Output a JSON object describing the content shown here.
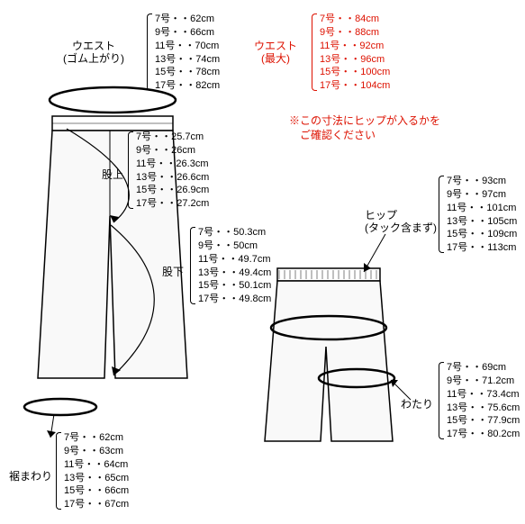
{
  "labels": {
    "waist_up": "ウエスト\n(ゴム上がり)",
    "waist_max": "ウエスト\n(最大)",
    "rise": "股上",
    "inseam": "股下",
    "hem": "裾まわり",
    "hip": "ヒップ\n(タック含まず)",
    "wadari": "わたり",
    "note": "※この寸法にヒップが入るかを\n　ご確認ください"
  },
  "tables": {
    "waist_up": [
      "7号・・62cm",
      "9号・・66cm",
      "11号・・70cm",
      "13号・・74cm",
      "15号・・78cm",
      "17号・・82cm"
    ],
    "waist_max": [
      "7号・・84cm",
      "9号・・88cm",
      "11号・・92cm",
      "13号・・96cm",
      "15号・・100cm",
      "17号・・104cm"
    ],
    "rise": [
      "7号・・25.7cm",
      "9号・・26cm",
      "11号・・26.3cm",
      "13号・・26.6cm",
      "15号・・26.9cm",
      "17号・・27.2cm"
    ],
    "inseam": [
      "7号・・50.3cm",
      "9号・・50cm",
      "11号・・49.7cm",
      "13号・・49.4cm",
      "15号・・50.1cm",
      "17号・・49.8cm"
    ],
    "hip": [
      "7号・・93cm",
      "9号・・97cm",
      "11号・・101cm",
      "13号・・105cm",
      "15号・・109cm",
      "17号・・113cm"
    ],
    "wadari": [
      "7号・・69cm",
      "9号・・71.2cm",
      "11号・・73.4cm",
      "13号・・75.6cm",
      "15号・・77.9cm",
      "17号・・80.2cm"
    ],
    "hem": [
      "7号・・62cm",
      "9号・・63cm",
      "11号・・64cm",
      "13号・・65cm",
      "15号・・66cm",
      "17号・・67cm"
    ]
  },
  "style": {
    "text_color": "#000000",
    "accent_color": "#dd1100",
    "bg": "#ffffff",
    "font_size_table": 11,
    "font_size_label": 12,
    "line_height": 1.35
  }
}
